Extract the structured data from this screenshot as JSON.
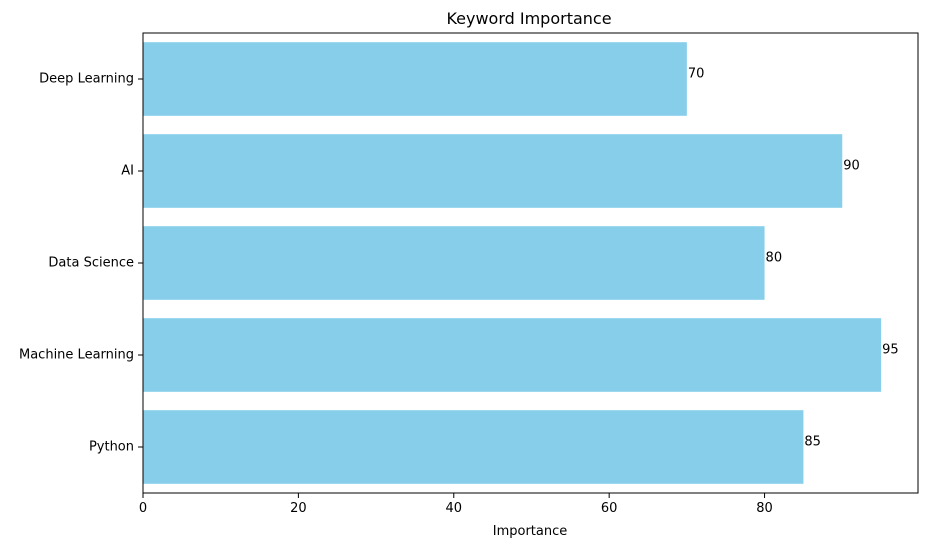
{
  "chart_data": {
    "type": "bar",
    "orientation": "horizontal",
    "title": "Keyword Importance",
    "xlabel": "Importance",
    "ylabel": "",
    "categories": [
      "Python",
      "Machine Learning",
      "Data Science",
      "AI",
      "Deep Learning"
    ],
    "values": [
      85,
      95,
      80,
      90,
      70
    ],
    "data_labels": [
      "85",
      "95",
      "80",
      "90",
      "70"
    ],
    "xlim": [
      0,
      99.75
    ],
    "xticks": [
      0,
      20,
      40,
      60,
      80
    ],
    "xtick_labels": [
      "0",
      "20",
      "40",
      "60",
      "80"
    ],
    "bar_color": "#87ceeb",
    "grid": false,
    "legend": "none"
  }
}
